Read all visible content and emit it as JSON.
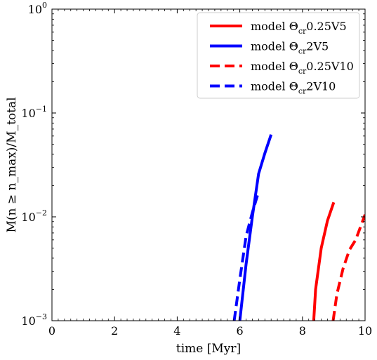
{
  "chart_data": {
    "type": "line",
    "title": "",
    "xlabel": "time [Myr]",
    "ylabel": "M(n ≥ n_max)/M_total",
    "xlim": [
      0,
      10
    ],
    "ylim": [
      0.001,
      1
    ],
    "yscale": "log",
    "x_ticks": [
      0,
      2,
      4,
      6,
      8,
      10
    ],
    "x_tick_labels": [
      "0",
      "2",
      "4",
      "6",
      "8",
      "10"
    ],
    "y_ticks": [
      0.001,
      0.01,
      0.1,
      1
    ],
    "y_tick_labels": [
      {
        "base": "10",
        "exp": "−3"
      },
      {
        "base": "10",
        "exp": "−2"
      },
      {
        "base": "10",
        "exp": "−1"
      },
      {
        "base": "10",
        "exp": "0"
      }
    ],
    "grid": false,
    "legend_position": "top-right",
    "series": [
      {
        "name": "model Θcr0.25V5",
        "name_parts": {
          "prefix": "model Θ",
          "sub": "cr",
          "suffix": "0.25V5"
        },
        "color": "#ff0000",
        "style": "solid",
        "x": [
          8.36,
          8.42,
          8.6,
          8.8,
          9.0
        ],
        "y": [
          0.001,
          0.002,
          0.005,
          0.0092,
          0.0138
        ]
      },
      {
        "name": "model Θcr2V5",
        "name_parts": {
          "prefix": "model Θ",
          "sub": "cr",
          "suffix": "2V5"
        },
        "color": "#0000ff",
        "style": "solid",
        "x": [
          6.0,
          6.2,
          6.4,
          6.6,
          6.8,
          7.0
        ],
        "y": [
          0.001,
          0.0035,
          0.01,
          0.026,
          0.041,
          0.062
        ]
      },
      {
        "name": "model Θcr0.25V10",
        "name_parts": {
          "prefix": "model Θ",
          "sub": "cr",
          "suffix": "0.25V10"
        },
        "color": "#ff0000",
        "style": "dashed",
        "x": [
          8.98,
          9.1,
          9.3,
          9.5,
          9.7,
          10.0
        ],
        "y": [
          0.001,
          0.0018,
          0.0032,
          0.0048,
          0.006,
          0.0105
        ]
      },
      {
        "name": "model Θcr2V10",
        "name_parts": {
          "prefix": "model Θ",
          "sub": "cr",
          "suffix": "2V10"
        },
        "color": "#0000ff",
        "style": "dashed",
        "x": [
          5.82,
          6.0,
          6.2,
          6.4,
          6.6
        ],
        "y": [
          0.001,
          0.0025,
          0.0065,
          0.011,
          0.0175
        ]
      }
    ]
  }
}
